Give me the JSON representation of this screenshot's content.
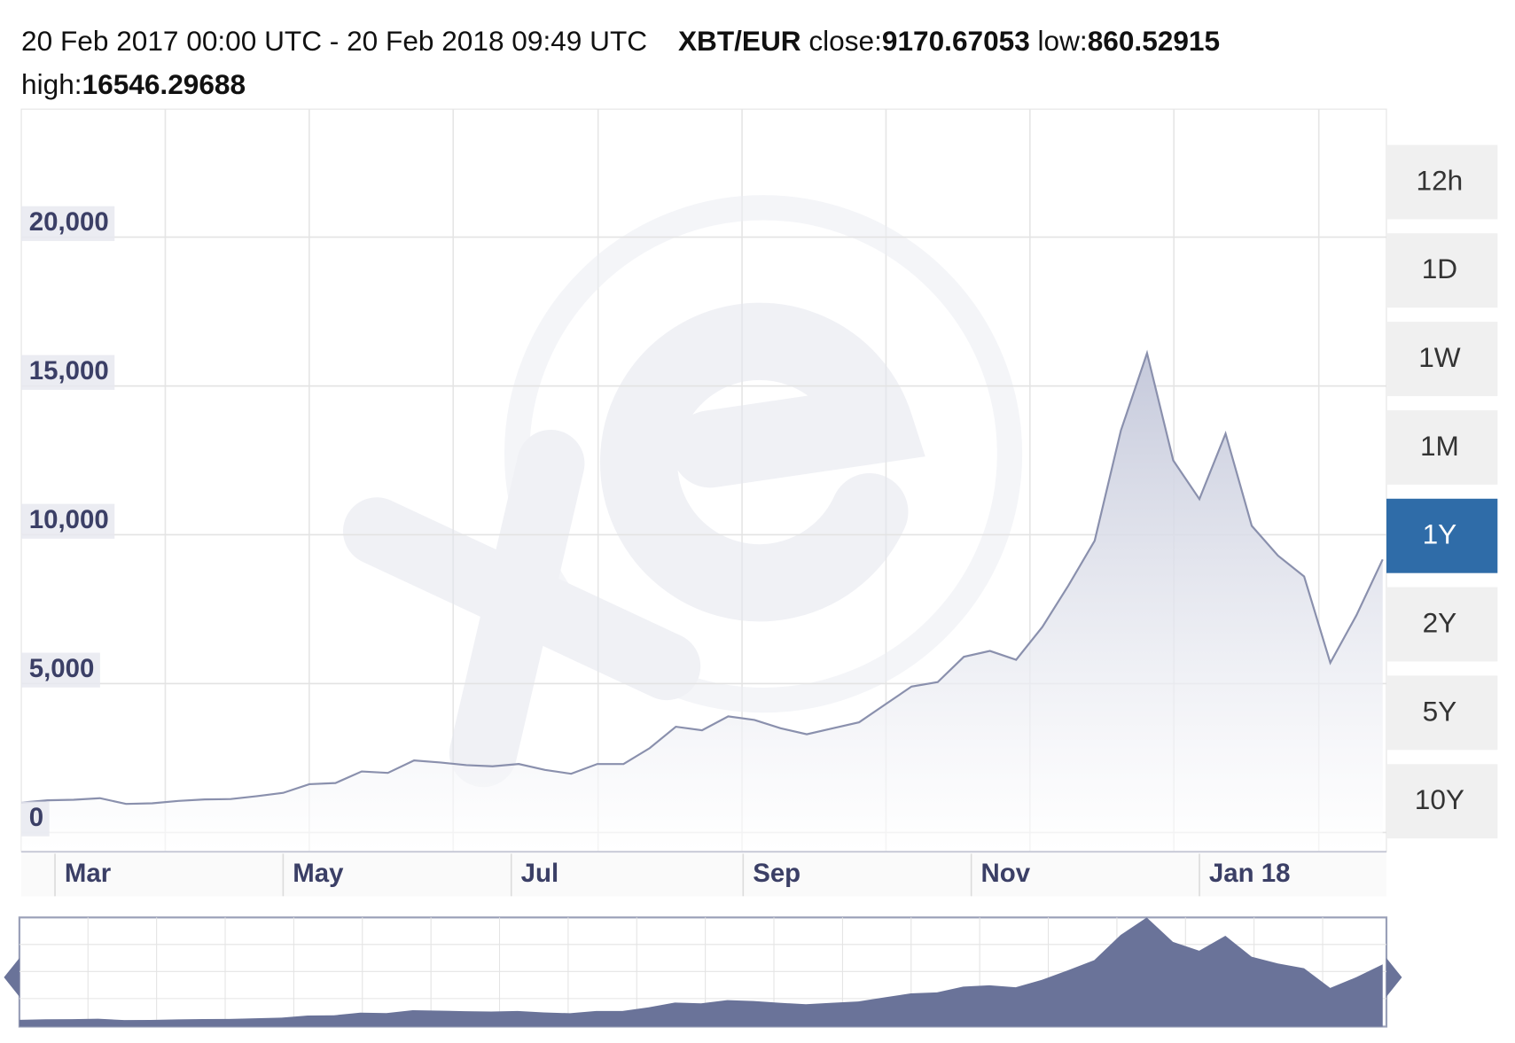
{
  "header": {
    "period": "20 Feb 2017 00:00 UTC - 20 Feb 2018 09:49 UTC",
    "pair": "XBT/EUR",
    "close_label": "close:",
    "close": "9170.67053",
    "low_label": "low:",
    "low": "860.52915",
    "high_label": "high:",
    "high": "16546.29688"
  },
  "ranges": [
    "12h",
    "1D",
    "1W",
    "1M",
    "1Y",
    "2Y",
    "5Y",
    "10Y"
  ],
  "selected_range": "1Y",
  "chart_data": {
    "type": "area",
    "color": "#8a90ad",
    "fill": "#c5c9db",
    "navigator_color": "#6a7399",
    "x": [
      "2017-02-20",
      "2017-02-27",
      "2017-03-06",
      "2017-03-13",
      "2017-03-20",
      "2017-03-27",
      "2017-04-03",
      "2017-04-10",
      "2017-04-17",
      "2017-04-24",
      "2017-05-01",
      "2017-05-08",
      "2017-05-15",
      "2017-05-22",
      "2017-05-29",
      "2017-06-05",
      "2017-06-12",
      "2017-06-19",
      "2017-06-26",
      "2017-07-03",
      "2017-07-10",
      "2017-07-17",
      "2017-07-24",
      "2017-07-31",
      "2017-08-07",
      "2017-08-14",
      "2017-08-21",
      "2017-08-28",
      "2017-09-04",
      "2017-09-11",
      "2017-09-18",
      "2017-09-25",
      "2017-10-02",
      "2017-10-09",
      "2017-10-16",
      "2017-10-23",
      "2017-10-30",
      "2017-11-06",
      "2017-11-13",
      "2017-11-20",
      "2017-11-27",
      "2017-12-04",
      "2017-12-11",
      "2017-12-18",
      "2017-12-25",
      "2018-01-01",
      "2018-01-08",
      "2018-01-15",
      "2018-01-22",
      "2018-01-29",
      "2018-02-05",
      "2018-02-12",
      "2018-02-19"
    ],
    "values": [
      1000,
      1080,
      1100,
      1150,
      960,
      980,
      1060,
      1110,
      1120,
      1220,
      1330,
      1620,
      1660,
      2050,
      2000,
      2420,
      2350,
      2260,
      2220,
      2300,
      2100,
      1970,
      2300,
      2300,
      2830,
      3550,
      3430,
      3900,
      3780,
      3500,
      3300,
      3500,
      3700,
      4300,
      4900,
      5050,
      5900,
      6100,
      5800,
      6900,
      8300,
      9800,
      13500,
      16100,
      12500,
      11200,
      13400,
      10300,
      9300,
      8600,
      5700,
      7300,
      9170
    ],
    "xlim": [
      "2017-02-20",
      "2018-02-20"
    ],
    "xticks": [
      {
        "value": "2017-03-01",
        "label": "Mar"
      },
      {
        "value": "2017-05-01",
        "label": "May"
      },
      {
        "value": "2017-07-01",
        "label": "Jul"
      },
      {
        "value": "2017-09-01",
        "label": "Sep"
      },
      {
        "value": "2017-11-01",
        "label": "Nov"
      },
      {
        "value": "2018-01-01",
        "label": "Jan 18"
      }
    ],
    "ylim": [
      -650,
      24300
    ],
    "yticks": [
      0,
      {
        "value": 5000,
        "label": "5,000"
      },
      {
        "value": 10000,
        "label": "10,000"
      },
      {
        "value": 15000,
        "label": "15,000"
      },
      {
        "value": 20000,
        "label": "20,000"
      }
    ],
    "grid": true
  }
}
